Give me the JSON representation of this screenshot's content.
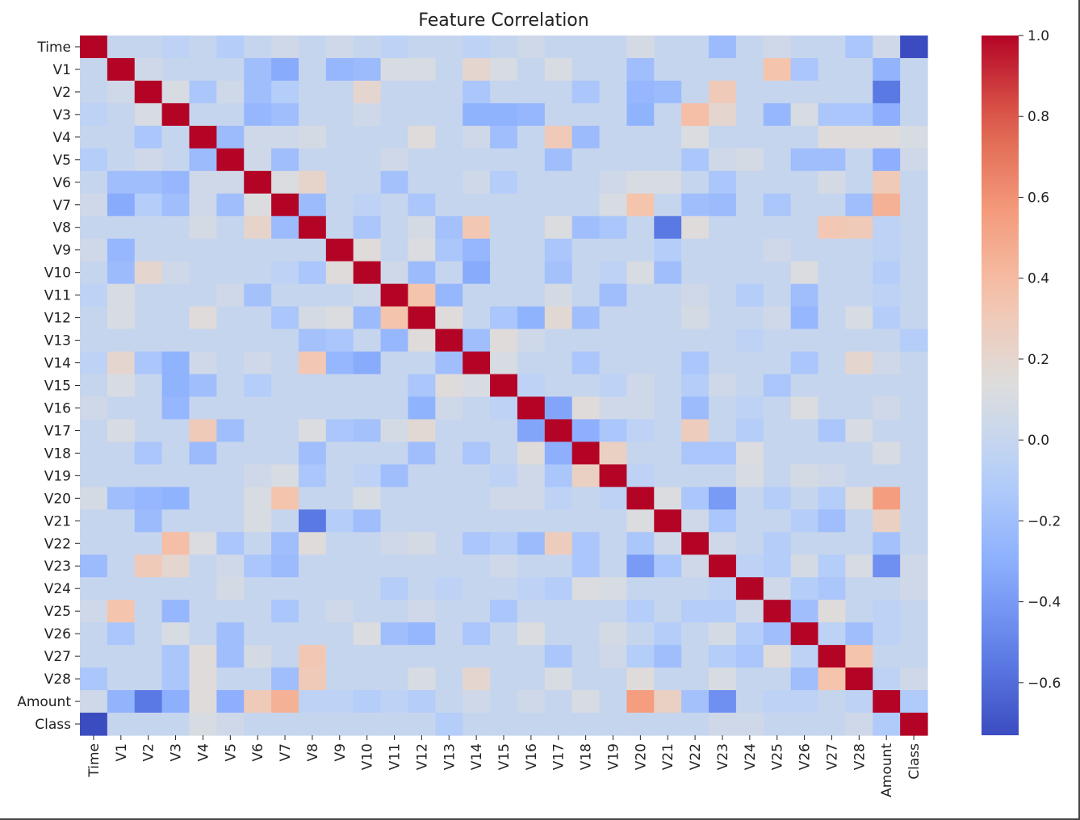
{
  "chart_data": {
    "type": "heatmap",
    "title": "Feature Correlation",
    "xlabel": "",
    "ylabel": "",
    "colormap": "coolwarm",
    "vmin": -0.73,
    "vmax": 1.0,
    "colorbar_ticks": [
      {
        "value": 1.0,
        "label": "1.0"
      },
      {
        "value": 0.8,
        "label": "0.8"
      },
      {
        "value": 0.6,
        "label": "0.6"
      },
      {
        "value": 0.4,
        "label": "0.4"
      },
      {
        "value": 0.2,
        "label": "0.2"
      },
      {
        "value": 0.0,
        "label": "0.0"
      },
      {
        "value": -0.2,
        "label": "−0.2"
      },
      {
        "value": -0.4,
        "label": "−0.4"
      },
      {
        "value": -0.6,
        "label": "−0.6"
      }
    ],
    "labels": [
      "Time",
      "V1",
      "V2",
      "V3",
      "V4",
      "V5",
      "V6",
      "V7",
      "V8",
      "V9",
      "V10",
      "V11",
      "V12",
      "V13",
      "V14",
      "V15",
      "V16",
      "V17",
      "V18",
      "V19",
      "V20",
      "V21",
      "V22",
      "V23",
      "V24",
      "V25",
      "V26",
      "V27",
      "V28",
      "Amount",
      "Class"
    ],
    "cells": [
      [
        "V1",
        "V7",
        -0.32
      ],
      [
        "V1",
        "V9",
        -0.25
      ],
      [
        "V1",
        "V10",
        -0.22
      ],
      [
        "V1",
        "V14",
        0.2
      ],
      [
        "V1",
        "V25",
        0.35
      ],
      [
        "V1",
        "V20",
        -0.2
      ],
      [
        "V1",
        "Amount",
        -0.27
      ],
      [
        "V1",
        "V2",
        0.05
      ],
      [
        "V1",
        "V26",
        -0.15
      ],
      [
        "V1",
        "V6",
        -0.2
      ],
      [
        "V1",
        "V11",
        0.1
      ],
      [
        "V1",
        "V12",
        0.1
      ],
      [
        "V1",
        "V15",
        0.1
      ],
      [
        "V1",
        "V17",
        0.1
      ],
      [
        "Time",
        "V3",
        -0.05
      ],
      [
        "Time",
        "V5",
        -0.1
      ],
      [
        "Time",
        "V9",
        0.05
      ],
      [
        "Time",
        "V20",
        0.08
      ],
      [
        "Time",
        "V23",
        -0.22
      ],
      [
        "Time",
        "V25",
        0.05
      ],
      [
        "Time",
        "V11",
        -0.05
      ],
      [
        "Time",
        "V7",
        0.05
      ],
      [
        "Time",
        "Amount",
        0.05
      ],
      [
        "Time",
        "Class",
        -0.73
      ],
      [
        "Time",
        "V28",
        -0.15
      ],
      [
        "Time",
        "V21",
        0.0
      ],
      [
        "Time",
        "V14",
        -0.05
      ],
      [
        "Time",
        "V16",
        0.05
      ],
      [
        "V2",
        "V3",
        0.1
      ],
      [
        "V2",
        "V10",
        0.2
      ],
      [
        "V2",
        "V20",
        -0.25
      ],
      [
        "V2",
        "V21",
        -0.22
      ],
      [
        "V2",
        "V23",
        0.3
      ],
      [
        "V2",
        "Amount",
        -0.55
      ],
      [
        "V2",
        "V6",
        -0.2
      ],
      [
        "V2",
        "V5",
        0.05
      ],
      [
        "V2",
        "V14",
        -0.15
      ],
      [
        "V2",
        "V4",
        -0.15
      ],
      [
        "V2",
        "V18",
        -0.15
      ],
      [
        "V2",
        "V7",
        -0.1
      ],
      [
        "V3",
        "V6",
        -0.25
      ],
      [
        "V3",
        "V7",
        -0.2
      ],
      [
        "V3",
        "V14",
        -0.28
      ],
      [
        "V3",
        "V15",
        -0.28
      ],
      [
        "V3",
        "V16",
        -0.25
      ],
      [
        "V3",
        "V20",
        -0.28
      ],
      [
        "V3",
        "V22",
        0.38
      ],
      [
        "V3",
        "V23",
        0.2
      ],
      [
        "V3",
        "V25",
        -0.25
      ],
      [
        "V3",
        "V26",
        0.1
      ],
      [
        "V3",
        "Amount",
        -0.3
      ],
      [
        "V3",
        "V4",
        0.0
      ],
      [
        "V3",
        "V10",
        0.05
      ],
      [
        "V3",
        "V27",
        -0.15
      ],
      [
        "V3",
        "V28",
        -0.15
      ],
      [
        "V4",
        "V5",
        -0.22
      ],
      [
        "V4",
        "V12",
        0.15
      ],
      [
        "V4",
        "V17",
        0.3
      ],
      [
        "V4",
        "V18",
        -0.22
      ],
      [
        "V4",
        "V14",
        0.05
      ],
      [
        "V4",
        "V15",
        -0.2
      ],
      [
        "V4",
        "V22",
        0.12
      ],
      [
        "V4",
        "V27",
        0.15
      ],
      [
        "V4",
        "V28",
        0.15
      ],
      [
        "V4",
        "Amount",
        0.15
      ],
      [
        "V4",
        "V6",
        0.05
      ],
      [
        "V4",
        "V7",
        0.05
      ],
      [
        "V4",
        "V8",
        0.08
      ],
      [
        "V4",
        "Class",
        0.1
      ],
      [
        "V5",
        "V6",
        0.05
      ],
      [
        "V5",
        "V7",
        -0.2
      ],
      [
        "V5",
        "V17",
        -0.2
      ],
      [
        "V5",
        "V26",
        -0.2
      ],
      [
        "V5",
        "V27",
        -0.2
      ],
      [
        "V5",
        "Amount",
        -0.3
      ],
      [
        "V5",
        "V22",
        -0.15
      ],
      [
        "V5",
        "V24",
        0.08
      ],
      [
        "V5",
        "V23",
        0.05
      ],
      [
        "V5",
        "V11",
        0.05
      ],
      [
        "V5",
        "Class",
        0.05
      ],
      [
        "V6",
        "V7",
        0.12
      ],
      [
        "V6",
        "V8",
        0.22
      ],
      [
        "V6",
        "V11",
        -0.18
      ],
      [
        "V6",
        "V14",
        0.05
      ],
      [
        "V6",
        "V20",
        0.1
      ],
      [
        "V6",
        "V21",
        0.1
      ],
      [
        "V6",
        "V23",
        -0.15
      ],
      [
        "V6",
        "Amount",
        0.3
      ],
      [
        "V6",
        "V19",
        0.05
      ],
      [
        "V6",
        "V27",
        0.08
      ],
      [
        "V6",
        "V15",
        -0.1
      ],
      [
        "V7",
        "V8",
        -0.22
      ],
      [
        "V7",
        "V20",
        0.35
      ],
      [
        "V7",
        "V22",
        -0.2
      ],
      [
        "V7",
        "V23",
        -0.22
      ],
      [
        "V7",
        "V25",
        -0.15
      ],
      [
        "V7",
        "V28",
        -0.2
      ],
      [
        "V7",
        "Amount",
        0.45
      ],
      [
        "V7",
        "V10",
        -0.05
      ],
      [
        "V7",
        "V12",
        -0.15
      ],
      [
        "V7",
        "V19",
        0.1
      ],
      [
        "V7",
        "V21",
        0.0
      ],
      [
        "V8",
        "V10",
        -0.15
      ],
      [
        "V8",
        "V13",
        -0.18
      ],
      [
        "V8",
        "V14",
        0.32
      ],
      [
        "V8",
        "V17",
        0.12
      ],
      [
        "V8",
        "V18",
        -0.2
      ],
      [
        "V8",
        "V21",
        -0.55
      ],
      [
        "V8",
        "V22",
        0.15
      ],
      [
        "V8",
        "V27",
        0.32
      ],
      [
        "V8",
        "V28",
        0.3
      ],
      [
        "V8",
        "V12",
        0.08
      ],
      [
        "V8",
        "V19",
        -0.15
      ],
      [
        "V8",
        "Amount",
        -0.05
      ],
      [
        "V9",
        "V10",
        0.15
      ],
      [
        "V9",
        "V12",
        0.12
      ],
      [
        "V9",
        "V14",
        -0.25
      ],
      [
        "V9",
        "V13",
        -0.15
      ],
      [
        "V9",
        "V17",
        -0.15
      ],
      [
        "V9",
        "V25",
        0.05
      ],
      [
        "V9",
        "V21",
        -0.1
      ],
      [
        "V9",
        "Amount",
        -0.05
      ],
      [
        "V10",
        "V12",
        -0.22
      ],
      [
        "V10",
        "V14",
        -0.32
      ],
      [
        "V10",
        "V17",
        -0.18
      ],
      [
        "V10",
        "V21",
        -0.2
      ],
      [
        "V10",
        "V20",
        0.1
      ],
      [
        "V10",
        "V26",
        0.12
      ],
      [
        "V10",
        "V11",
        0.05
      ],
      [
        "V10",
        "V19",
        -0.05
      ],
      [
        "V10",
        "Amount",
        -0.1
      ],
      [
        "V11",
        "V12",
        0.35
      ],
      [
        "V11",
        "V13",
        -0.25
      ],
      [
        "V11",
        "V19",
        -0.2
      ],
      [
        "V11",
        "V26",
        -0.2
      ],
      [
        "V11",
        "V17",
        0.08
      ],
      [
        "V11",
        "V24",
        -0.1
      ],
      [
        "V11",
        "Amount",
        -0.05
      ],
      [
        "V11",
        "V22",
        0.05
      ],
      [
        "V12",
        "V16",
        -0.28
      ],
      [
        "V12",
        "V17",
        0.18
      ],
      [
        "V12",
        "V18",
        -0.2
      ],
      [
        "V12",
        "V26",
        -0.25
      ],
      [
        "V12",
        "V13",
        0.15
      ],
      [
        "V12",
        "V15",
        -0.15
      ],
      [
        "V12",
        "V28",
        0.1
      ],
      [
        "V12",
        "V25",
        0.05
      ],
      [
        "V12",
        "V22",
        0.08
      ],
      [
        "V12",
        "Amount",
        -0.1
      ],
      [
        "V13",
        "V14",
        -0.2
      ],
      [
        "V13",
        "V15",
        0.15
      ],
      [
        "V13",
        "V16",
        0.05
      ],
      [
        "V13",
        "Class",
        -0.1
      ],
      [
        "V13",
        "V21",
        0.0
      ],
      [
        "V13",
        "V24",
        -0.05
      ],
      [
        "V14",
        "V18",
        -0.15
      ],
      [
        "V14",
        "V28",
        0.2
      ],
      [
        "V14",
        "V26",
        -0.15
      ],
      [
        "V14",
        "V22",
        -0.15
      ],
      [
        "V14",
        "V15",
        0.1
      ],
      [
        "V14",
        "Amount",
        0.05
      ],
      [
        "V14",
        "V16",
        0.0
      ],
      [
        "V15",
        "V16",
        -0.05
      ],
      [
        "V15",
        "V22",
        -0.1
      ],
      [
        "V15",
        "V25",
        -0.15
      ],
      [
        "V15",
        "V20",
        0.05
      ],
      [
        "V15",
        "V23",
        0.05
      ],
      [
        "V15",
        "V19",
        -0.05
      ],
      [
        "V16",
        "V17",
        -0.35
      ],
      [
        "V16",
        "V18",
        0.15
      ],
      [
        "V16",
        "V22",
        -0.22
      ],
      [
        "V16",
        "V26",
        0.12
      ],
      [
        "V16",
        "V20",
        0.05
      ],
      [
        "V16",
        "V24",
        -0.05
      ],
      [
        "V16",
        "V19",
        0.05
      ],
      [
        "V16",
        "Amount",
        0.05
      ],
      [
        "V17",
        "V18",
        -0.3
      ],
      [
        "V17",
        "V22",
        0.28
      ],
      [
        "V17",
        "V27",
        -0.15
      ],
      [
        "V17",
        "V24",
        -0.1
      ],
      [
        "V17",
        "V28",
        0.1
      ],
      [
        "V17",
        "V19",
        -0.15
      ],
      [
        "V17",
        "V20",
        -0.05
      ],
      [
        "V18",
        "V19",
        0.25
      ],
      [
        "V18",
        "V24",
        0.12
      ],
      [
        "V18",
        "Amount",
        0.1
      ],
      [
        "V18",
        "V22",
        -0.15
      ],
      [
        "V18",
        "V23",
        -0.15
      ],
      [
        "V19",
        "V24",
        0.1
      ],
      [
        "V19",
        "V26",
        0.08
      ],
      [
        "V19",
        "V20",
        -0.05
      ],
      [
        "V19",
        "V27",
        0.05
      ],
      [
        "V20",
        "V21",
        0.12
      ],
      [
        "V20",
        "V22",
        -0.15
      ],
      [
        "V20",
        "V23",
        -0.4
      ],
      [
        "V20",
        "V28",
        0.15
      ],
      [
        "V20",
        "Amount",
        0.55
      ],
      [
        "V20",
        "V27",
        -0.1
      ],
      [
        "V20",
        "V25",
        -0.1
      ],
      [
        "V21",
        "V22",
        0.05
      ],
      [
        "V21",
        "V23",
        -0.15
      ],
      [
        "V21",
        "V27",
        -0.2
      ],
      [
        "V21",
        "Amount",
        0.25
      ],
      [
        "V21",
        "V26",
        -0.1
      ],
      [
        "V22",
        "V23",
        0.05
      ],
      [
        "V22",
        "V25",
        -0.1
      ],
      [
        "V22",
        "Amount",
        -0.18
      ],
      [
        "V22",
        "V27",
        0.0
      ],
      [
        "V23",
        "V24",
        -0.05
      ],
      [
        "V23",
        "V26",
        0.08
      ],
      [
        "V23",
        "V28",
        0.1
      ],
      [
        "V23",
        "Amount",
        -0.45
      ],
      [
        "V23",
        "V27",
        -0.1
      ],
      [
        "V23",
        "Class",
        0.05
      ],
      [
        "V23",
        "V25",
        -0.1
      ],
      [
        "V24",
        "V27",
        -0.15
      ],
      [
        "V24",
        "V25",
        0.05
      ],
      [
        "V24",
        "V26",
        -0.1
      ],
      [
        "V24",
        "Amount",
        0.0
      ],
      [
        "V24",
        "Class",
        0.05
      ],
      [
        "V25",
        "V27",
        0.15
      ],
      [
        "V25",
        "V26",
        -0.2
      ],
      [
        "V25",
        "Amount",
        -0.05
      ],
      [
        "V26",
        "V28",
        -0.2
      ],
      [
        "V26",
        "V27",
        -0.05
      ],
      [
        "V26",
        "Amount",
        -0.05
      ],
      [
        "V27",
        "V28",
        0.35
      ],
      [
        "V27",
        "Amount",
        0.0
      ],
      [
        "V28",
        "Amount",
        -0.05
      ],
      [
        "V28",
        "Class",
        0.05
      ],
      [
        "Amount",
        "Class",
        -0.12
      ]
    ]
  }
}
